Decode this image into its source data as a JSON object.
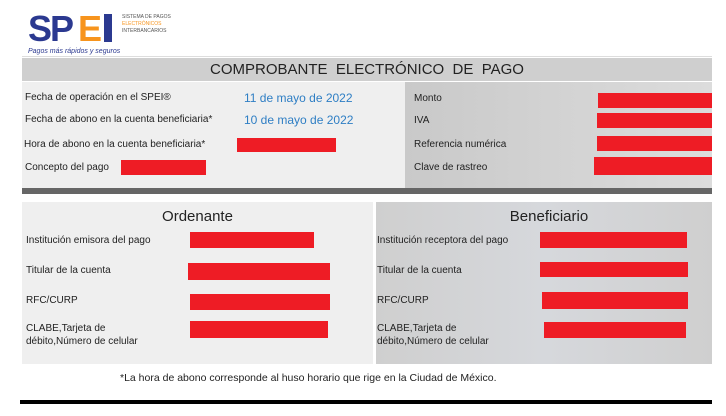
{
  "logo": {
    "text_sp": "SP",
    "text_e": "E",
    "lines": [
      "SISTEMA DE PAGOS",
      "ELECTRÓNICOS",
      "INTERBANCARIOS"
    ],
    "tagline": "Pagos más rápidos y seguros",
    "colors": {
      "navy": "#2b3990",
      "orange": "#f7941d"
    }
  },
  "title": "COMPROBANTE  ELECTRÓNICO  DE  PAGO",
  "info": {
    "fecha_operacion_label": "Fecha de operación en el SPEI®",
    "fecha_operacion": "11 de mayo de 2022",
    "fecha_abono_label": "Fecha de abono en la cuenta beneficiaria*",
    "fecha_abono": "10 de mayo de 2022",
    "hora_abono_label": "Hora de abono en la cuenta beneficiaria*",
    "concepto_label": "Concepto del pago",
    "monto_label": "Monto",
    "iva_label": "IVA",
    "referencia_label": "Referencia numérica",
    "clave_label": "Clave de rastreo"
  },
  "ordenante": {
    "title": "Ordenante",
    "rows": [
      "Institución emisora del pago",
      "Titular de la cuenta",
      "RFC/CURP",
      "CLABE,Tarjeta de débito,Número de celular"
    ]
  },
  "beneficiario": {
    "title": "Beneficiario",
    "rows": [
      "Institución receptora del pago",
      "Titular de la cuenta",
      "RFC/CURP",
      "CLABE,Tarjeta de débito,Número de celular"
    ]
  },
  "footnote": "*La hora de abono corresponde al huso horario que rige en la Ciudad de México.",
  "redaction_color": "#ee1c25"
}
